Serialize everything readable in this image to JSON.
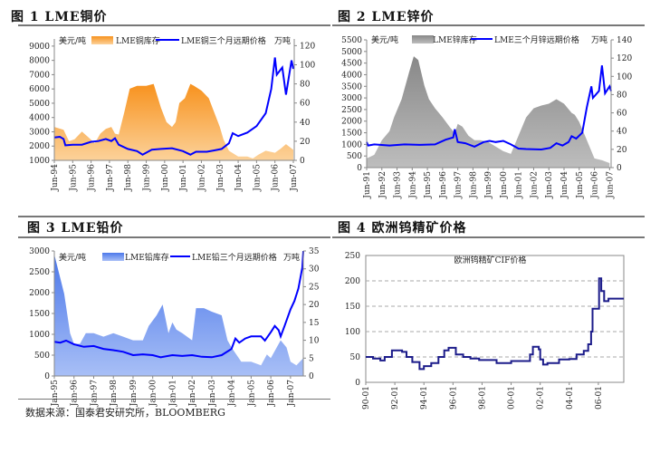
{
  "figures": [
    {
      "title": "图 1 LME铜价"
    },
    {
      "title": "图 2 LME锌价"
    },
    {
      "title": "图 3 LME铅价"
    },
    {
      "title": "图 4 欧洲钨精矿价格"
    }
  ],
  "footer": "数据来源：国泰君安研究所，BLOOMBERG",
  "colors": {
    "price_line": "#0000ff",
    "copper_area": "#f7a13a",
    "zinc_area": "#9a9a9a",
    "lead_area": "#6d93ee",
    "tungsten_line": "#1c1c8a"
  },
  "chart_data": [
    {
      "type": "area+line",
      "title": "LME铜价",
      "left_unit": "美元/吨",
      "right_unit": "万吨",
      "legend": [
        "LME铜库存",
        "LME铜三个月远期价格"
      ],
      "ylim_left": [
        1000,
        9500
      ],
      "ylim_right": [
        0,
        127
      ],
      "xlim": [
        1994.5,
        2007.55
      ],
      "yticks_left": [
        "1000",
        "2000",
        "3000",
        "4000",
        "5000",
        "6000",
        "7000",
        "8000",
        "9000"
      ],
      "yticks_right": [
        "0",
        "20",
        "40",
        "60",
        "80",
        "100",
        "120"
      ],
      "xticks": [
        "Jun-94",
        "Jun-95",
        "Jun-96",
        "Jun-97",
        "Jun-98",
        "Jun-99",
        "Jun-00",
        "Jun-01",
        "Jun-02",
        "Jun-03",
        "Jun-04",
        "Jun-05",
        "Jun-06",
        "Jun-07"
      ],
      "xtick_start": 1994.5,
      "xtick_step": 1,
      "inventory": [
        [
          1994.5,
          35
        ],
        [
          1995.0,
          32
        ],
        [
          1995.3,
          20
        ],
        [
          1995.6,
          22
        ],
        [
          1996.0,
          30
        ],
        [
          1996.3,
          25
        ],
        [
          1996.7,
          18
        ],
        [
          1997.0,
          28
        ],
        [
          1997.3,
          33
        ],
        [
          1997.6,
          35
        ],
        [
          1997.8,
          28
        ],
        [
          1998.0,
          27
        ],
        [
          1998.3,
          50
        ],
        [
          1998.6,
          75
        ],
        [
          1999.0,
          78
        ],
        [
          1999.5,
          78
        ],
        [
          1999.9,
          80
        ],
        [
          2000.3,
          55
        ],
        [
          2000.6,
          40
        ],
        [
          2000.9,
          35
        ],
        [
          2001.1,
          40
        ],
        [
          2001.3,
          60
        ],
        [
          2001.6,
          65
        ],
        [
          2001.9,
          80
        ],
        [
          2002.1,
          78
        ],
        [
          2002.5,
          73
        ],
        [
          2002.9,
          65
        ],
        [
          2003.2,
          50
        ],
        [
          2003.5,
          35
        ],
        [
          2003.7,
          22
        ],
        [
          2004.0,
          10
        ],
        [
          2004.5,
          4
        ],
        [
          2005.0,
          4
        ],
        [
          2005.3,
          2
        ],
        [
          2005.6,
          6
        ],
        [
          2006.0,
          10
        ],
        [
          2006.5,
          8
        ],
        [
          2006.8,
          12
        ],
        [
          2007.1,
          17
        ],
        [
          2007.5,
          11
        ]
      ],
      "price": [
        [
          1994.5,
          2600
        ],
        [
          1994.8,
          2650
        ],
        [
          1995.0,
          2500
        ],
        [
          1995.1,
          2050
        ],
        [
          1995.5,
          2100
        ],
        [
          1996.0,
          2100
        ],
        [
          1996.5,
          2300
        ],
        [
          1996.9,
          2350
        ],
        [
          1997.3,
          2500
        ],
        [
          1997.6,
          2350
        ],
        [
          1997.8,
          2550
        ],
        [
          1998.0,
          2100
        ],
        [
          1998.5,
          1800
        ],
        [
          1999.0,
          1650
        ],
        [
          1999.3,
          1400
        ],
        [
          1999.8,
          1750
        ],
        [
          2000.3,
          1800
        ],
        [
          2000.9,
          1850
        ],
        [
          2001.5,
          1650
        ],
        [
          2001.9,
          1400
        ],
        [
          2002.2,
          1600
        ],
        [
          2002.8,
          1600
        ],
        [
          2003.2,
          1700
        ],
        [
          2003.6,
          1800
        ],
        [
          2004.0,
          2200
        ],
        [
          2004.2,
          2900
        ],
        [
          2004.5,
          2700
        ],
        [
          2005.0,
          2950
        ],
        [
          2005.5,
          3400
        ],
        [
          2006.0,
          4300
        ],
        [
          2006.3,
          6000
        ],
        [
          2006.5,
          8200
        ],
        [
          2006.6,
          7000
        ],
        [
          2006.9,
          7500
        ],
        [
          2007.1,
          5600
        ],
        [
          2007.4,
          8000
        ],
        [
          2007.5,
          7400
        ]
      ]
    },
    {
      "type": "area+line",
      "title": "LME锌价",
      "left_unit": "美元/吨",
      "right_unit": "万吨",
      "legend": [
        "LME锌库存",
        "LME三个月锌远期价格"
      ],
      "ylim_left": [
        0,
        5500
      ],
      "ylim_right": [
        0,
        140
      ],
      "xlim": [
        1991.5,
        2007.6
      ],
      "yticks_left": [
        "0",
        "500",
        "1000",
        "1500",
        "2000",
        "2500",
        "3000",
        "3500",
        "4000",
        "4500",
        "5000",
        "5500"
      ],
      "yticks_right": [
        "0",
        "20",
        "40",
        "60",
        "80",
        "100",
        "120",
        "140"
      ],
      "xticks": [
        "Jun-91",
        "Jun-92",
        "Jun-93",
        "Jun-94",
        "Jun-95",
        "Jun-96",
        "Jun-97",
        "Jun-98",
        "Jun-99",
        "Jun-00",
        "Jun-01",
        "Jun-02",
        "Jun-03",
        "Jun-04",
        "Jun-05",
        "Jun-06",
        "Jun-07"
      ],
      "xtick_start": 1991.5,
      "xtick_step": 1,
      "inventory": [
        [
          1991.5,
          10
        ],
        [
          1992.0,
          14
        ],
        [
          1992.5,
          30
        ],
        [
          1993.0,
          40
        ],
        [
          1993.3,
          55
        ],
        [
          1993.8,
          75
        ],
        [
          1994.3,
          105
        ],
        [
          1994.6,
          122
        ],
        [
          1994.9,
          118
        ],
        [
          1995.3,
          90
        ],
        [
          1995.6,
          75
        ],
        [
          1996.0,
          65
        ],
        [
          1996.5,
          55
        ],
        [
          1997.0,
          44
        ],
        [
          1997.3,
          38
        ],
        [
          1997.5,
          48
        ],
        [
          1997.8,
          45
        ],
        [
          1998.2,
          35
        ],
        [
          1998.6,
          30
        ],
        [
          1999.0,
          30
        ],
        [
          1999.5,
          28
        ],
        [
          2000.0,
          23
        ],
        [
          2000.5,
          18
        ],
        [
          2001.0,
          15
        ],
        [
          2001.5,
          35
        ],
        [
          2002.0,
          55
        ],
        [
          2002.5,
          65
        ],
        [
          2003.0,
          68
        ],
        [
          2003.5,
          70
        ],
        [
          2004.0,
          75
        ],
        [
          2004.5,
          70
        ],
        [
          2005.0,
          60
        ],
        [
          2005.2,
          58
        ],
        [
          2005.5,
          50
        ],
        [
          2006.0,
          30
        ],
        [
          2006.5,
          10
        ],
        [
          2007.0,
          8
        ],
        [
          2007.5,
          5
        ]
      ],
      "price": [
        [
          1991.5,
          1100
        ],
        [
          1991.6,
          950
        ],
        [
          1992.0,
          1000
        ],
        [
          1993.0,
          950
        ],
        [
          1994.0,
          1000
        ],
        [
          1995.0,
          980
        ],
        [
          1996.0,
          1000
        ],
        [
          1996.7,
          1200
        ],
        [
          1997.2,
          1300
        ],
        [
          1997.3,
          1650
        ],
        [
          1997.5,
          1100
        ],
        [
          1998.0,
          1050
        ],
        [
          1998.6,
          900
        ],
        [
          1999.2,
          1100
        ],
        [
          1999.6,
          1150
        ],
        [
          2000.0,
          1100
        ],
        [
          2000.5,
          1150
        ],
        [
          2001.0,
          1000
        ],
        [
          2001.5,
          820
        ],
        [
          2002.0,
          800
        ],
        [
          2003.0,
          780
        ],
        [
          2003.6,
          850
        ],
        [
          2004.0,
          1050
        ],
        [
          2004.4,
          950
        ],
        [
          2004.8,
          1100
        ],
        [
          2005.0,
          1350
        ],
        [
          2005.3,
          1250
        ],
        [
          2005.7,
          1500
        ],
        [
          2006.0,
          2600
        ],
        [
          2006.3,
          3500
        ],
        [
          2006.4,
          3000
        ],
        [
          2006.8,
          3300
        ],
        [
          2007.0,
          4400
        ],
        [
          2007.2,
          3200
        ],
        [
          2007.5,
          3500
        ],
        [
          2007.6,
          3300
        ]
      ]
    },
    {
      "type": "area+line",
      "title": "LME铅价",
      "left_unit": "美元/吨",
      "right_unit": "万吨",
      "legend": [
        "LME铅库存",
        "LME铅三个月远期价格"
      ],
      "ylim_left": [
        0,
        3000
      ],
      "ylim_right": [
        0,
        35
      ],
      "xlim": [
        1995.0,
        2007.65
      ],
      "yticks_left": [
        "0",
        "500",
        "1000",
        "1500",
        "2000",
        "2500",
        "3000"
      ],
      "yticks_right": [
        "0",
        "5",
        "10",
        "15",
        "20",
        "25",
        "30",
        "35"
      ],
      "xticks": [
        "Jan-95",
        "Jan-96",
        "Jan-97",
        "Jan-98",
        "Jan-99",
        "Jan-00",
        "Jan-01",
        "Jan-02",
        "Jan-03",
        "Jan-04",
        "Jan-05",
        "Jan-06",
        "Jan-07"
      ],
      "xtick_start": 1995.0,
      "xtick_step": 1,
      "inventory": [
        [
          1995.0,
          34
        ],
        [
          1995.5,
          23
        ],
        [
          1995.8,
          12
        ],
        [
          1996.0,
          9
        ],
        [
          1996.3,
          9
        ],
        [
          1996.6,
          12
        ],
        [
          1997.0,
          12
        ],
        [
          1997.5,
          11
        ],
        [
          1998.0,
          12
        ],
        [
          1998.5,
          11
        ],
        [
          1999.0,
          10
        ],
        [
          1999.5,
          10
        ],
        [
          1999.8,
          14
        ],
        [
          2000.2,
          17
        ],
        [
          2000.5,
          20
        ],
        [
          2000.8,
          12
        ],
        [
          2001.0,
          15
        ],
        [
          2001.2,
          13
        ],
        [
          2001.5,
          12
        ],
        [
          2002.0,
          10
        ],
        [
          2002.2,
          19
        ],
        [
          2002.6,
          19
        ],
        [
          2003.0,
          18
        ],
        [
          2003.5,
          17
        ],
        [
          2003.8,
          10
        ],
        [
          2004.0,
          8
        ],
        [
          2004.5,
          4
        ],
        [
          2005.0,
          4
        ],
        [
          2005.5,
          3
        ],
        [
          2005.8,
          6
        ],
        [
          2006.0,
          5
        ],
        [
          2006.5,
          10
        ],
        [
          2006.8,
          8
        ],
        [
          2007.0,
          4
        ],
        [
          2007.3,
          3
        ],
        [
          2007.65,
          5
        ]
      ],
      "price": [
        [
          1995.0,
          820
        ],
        [
          1995.3,
          800
        ],
        [
          1995.6,
          850
        ],
        [
          1996.0,
          760
        ],
        [
          1996.5,
          700
        ],
        [
          1997.0,
          720
        ],
        [
          1997.5,
          650
        ],
        [
          1998.0,
          620
        ],
        [
          1998.5,
          580
        ],
        [
          1999.0,
          500
        ],
        [
          1999.5,
          520
        ],
        [
          2000.0,
          500
        ],
        [
          2000.4,
          450
        ],
        [
          2001.0,
          500
        ],
        [
          2001.5,
          480
        ],
        [
          2002.0,
          500
        ],
        [
          2002.5,
          460
        ],
        [
          2003.0,
          450
        ],
        [
          2003.5,
          500
        ],
        [
          2004.0,
          650
        ],
        [
          2004.2,
          900
        ],
        [
          2004.4,
          800
        ],
        [
          2004.7,
          900
        ],
        [
          2005.0,
          950
        ],
        [
          2005.5,
          950
        ],
        [
          2005.7,
          850
        ],
        [
          2006.0,
          1050
        ],
        [
          2006.2,
          1200
        ],
        [
          2006.4,
          1100
        ],
        [
          2006.5,
          950
        ],
        [
          2006.7,
          1200
        ],
        [
          2007.0,
          1600
        ],
        [
          2007.2,
          1800
        ],
        [
          2007.4,
          2100
        ],
        [
          2007.6,
          2600
        ],
        [
          2007.65,
          3000
        ]
      ]
    },
    {
      "type": "line",
      "title": "欧洲钨精矿CIF价格",
      "ylim": [
        0,
        250
      ],
      "xlim": [
        1990.0,
        2007.75
      ],
      "yticks": [
        "0",
        "50",
        "100",
        "150",
        "200",
        "250"
      ],
      "xticks": [
        "90-01",
        "92-01",
        "94-01",
        "96-01",
        "98-01",
        "00-01",
        "02-01",
        "04-01",
        "06-01"
      ],
      "xtick_start": 1990.0,
      "xtick_step": 2,
      "values": [
        [
          1990.0,
          50
        ],
        [
          1990.5,
          47
        ],
        [
          1991.0,
          43
        ],
        [
          1991.3,
          50
        ],
        [
          1991.8,
          63
        ],
        [
          1992.5,
          60
        ],
        [
          1992.8,
          50
        ],
        [
          1993.2,
          40
        ],
        [
          1993.7,
          26
        ],
        [
          1994.0,
          32
        ],
        [
          1994.5,
          38
        ],
        [
          1995.0,
          50
        ],
        [
          1995.4,
          63
        ],
        [
          1995.7,
          68
        ],
        [
          1996.2,
          55
        ],
        [
          1996.7,
          50
        ],
        [
          1997.2,
          47
        ],
        [
          1997.8,
          44
        ],
        [
          1998.5,
          44
        ],
        [
          1999.0,
          38
        ],
        [
          2000.0,
          42
        ],
        [
          2001.0,
          42
        ],
        [
          2001.3,
          55
        ],
        [
          2001.5,
          70
        ],
        [
          2001.9,
          65
        ],
        [
          2002.0,
          45
        ],
        [
          2002.2,
          35
        ],
        [
          2002.5,
          38
        ],
        [
          2003.0,
          38
        ],
        [
          2003.3,
          45
        ],
        [
          2004.0,
          46
        ],
        [
          2004.5,
          55
        ],
        [
          2005.0,
          62
        ],
        [
          2005.3,
          75
        ],
        [
          2005.5,
          100
        ],
        [
          2005.6,
          145
        ],
        [
          2006.0,
          145
        ],
        [
          2006.05,
          205
        ],
        [
          2006.2,
          180
        ],
        [
          2006.4,
          160
        ],
        [
          2006.7,
          165
        ],
        [
          2007.75,
          165
        ]
      ]
    }
  ]
}
